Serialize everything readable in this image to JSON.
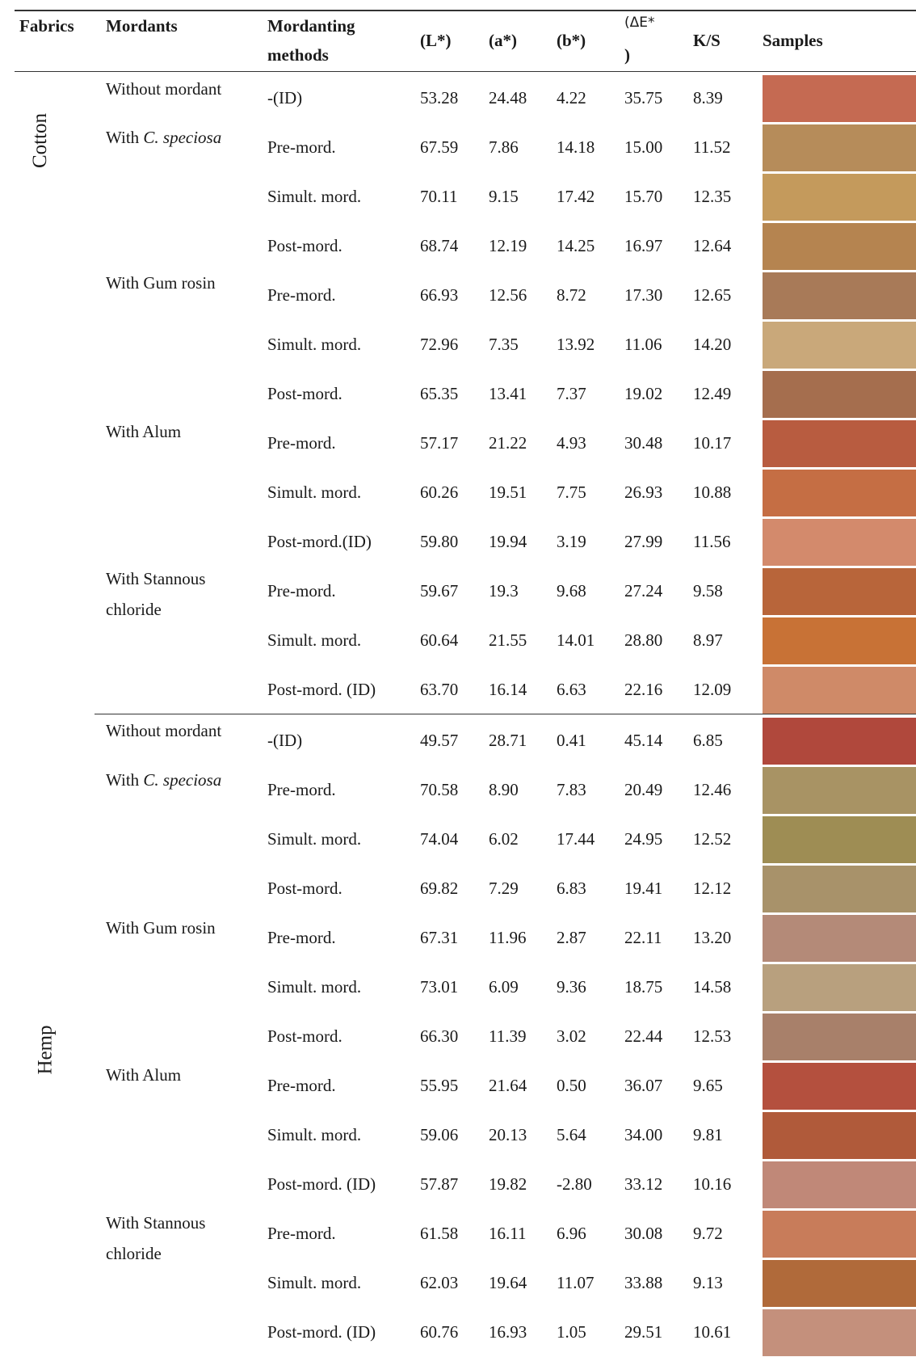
{
  "headers": {
    "fabrics": "Fabrics",
    "mordants": "Mordants",
    "methods_line1": "Mordanting",
    "methods_line2": "methods",
    "L": "(L*)",
    "a": "(a*)",
    "b": "(b*)",
    "dE_line1": "(ΔE*",
    "dE_line2": ")",
    "ks": "K/S",
    "samples": "Samples"
  },
  "fabrics": [
    {
      "name": "Cotton",
      "mordants": [
        {
          "prefix": "Without mordant",
          "italic": "",
          "rest": "",
          "line2": ""
        },
        {
          "prefix": "With ",
          "italic": "C. speciosa",
          "rest": "",
          "line2": ""
        },
        {
          "prefix": "With Gum rosin",
          "italic": "",
          "rest": "",
          "line2": ""
        },
        {
          "prefix": "With Alum",
          "italic": "",
          "rest": "",
          "line2": ""
        },
        {
          "prefix": "With Stannous",
          "italic": "",
          "rest": "",
          "line2": "chloride"
        }
      ],
      "rows": [
        {
          "method": "-(ID)",
          "L": "53.28",
          "a": "24.48",
          "b": "4.22",
          "dE": "35.75",
          "ks": "8.39",
          "color": "#c56a52"
        },
        {
          "method": "Pre-mord.",
          "L": "67.59",
          "a": "7.86",
          "b": "14.18",
          "dE": "15.00",
          "ks": "11.52",
          "color": "#b68c5a"
        },
        {
          "method": "Simult. mord.",
          "L": "70.11",
          "a": "9.15",
          "b": "17.42",
          "dE": "15.70",
          "ks": "12.35",
          "color": "#c49a5c"
        },
        {
          "method": "Post-mord.",
          "L": "68.74",
          "a": "12.19",
          "b": "14.25",
          "dE": "16.97",
          "ks": "12.64",
          "color": "#b58450"
        },
        {
          "method": "Pre-mord.",
          "L": "66.93",
          "a": "12.56",
          "b": "8.72",
          "dE": "17.30",
          "ks": "12.65",
          "color": "#a87a58"
        },
        {
          "method": "Simult. mord.",
          "L": "72.96",
          "a": "7.35",
          "b": "13.92",
          "dE": "11.06",
          "ks": "14.20",
          "color": "#c9a87a"
        },
        {
          "method": "Post-mord.",
          "L": "65.35",
          "a": "13.41",
          "b": "7.37",
          "dE": "19.02",
          "ks": "12.49",
          "color": "#a56e4e"
        },
        {
          "method": "Pre-mord.",
          "L": "57.17",
          "a": "21.22",
          "b": "4.93",
          "dE": "30.48",
          "ks": "10.17",
          "color": "#b85c40"
        },
        {
          "method": "Simult. mord.",
          "L": "60.26",
          "a": "19.51",
          "b": "7.75",
          "dE": "26.93",
          "ks": "10.88",
          "color": "#c56e44"
        },
        {
          "method": "Post-mord.(ID)",
          "L": "59.80",
          "a": "19.94",
          "b": "3.19",
          "dE": "27.99",
          "ks": "11.56",
          "color": "#d38a6c"
        },
        {
          "method": "Pre-mord.",
          "L": "59.67",
          "a": "19.3",
          "b": "9.68",
          "dE": "27.24",
          "ks": "9.58",
          "color": "#b8653a"
        },
        {
          "method": "Simult. mord.",
          "L": "60.64",
          "a": "21.55",
          "b": "14.01",
          "dE": "28.80",
          "ks": "8.97",
          "color": "#c87236"
        },
        {
          "method": "Post-mord. (ID)",
          "L": "63.70",
          "a": "16.14",
          "b": "6.63",
          "dE": "22.16",
          "ks": "12.09",
          "color": "#cf8a68"
        }
      ]
    },
    {
      "name": "Hemp",
      "mordants": [
        {
          "prefix": "Without mordant",
          "italic": "",
          "rest": "",
          "line2": ""
        },
        {
          "prefix": "With ",
          "italic": "C. speciosa",
          "rest": "",
          "line2": ""
        },
        {
          "prefix": "With Gum rosin",
          "italic": "",
          "rest": "",
          "line2": ""
        },
        {
          "prefix": "With Alum",
          "italic": "",
          "rest": "",
          "line2": ""
        },
        {
          "prefix": "With Stannous",
          "italic": "",
          "rest": "",
          "line2": "chloride"
        }
      ],
      "rows": [
        {
          "method": "-(ID)",
          "L": "49.57",
          "a": "28.71",
          "b": "0.41",
          "dE": "45.14",
          "ks": "6.85",
          "color": "#b0483c"
        },
        {
          "method": "Pre-mord.",
          "L": "70.58",
          "a": "8.90",
          "b": "7.83",
          "dE": "20.49",
          "ks": "12.46",
          "color": "#a89364"
        },
        {
          "method": "Simult. mord.",
          "L": "74.04",
          "a": "6.02",
          "b": "17.44",
          "dE": "24.95",
          "ks": "12.52",
          "color": "#9e8d54"
        },
        {
          "method": "Post-mord.",
          "L": "69.82",
          "a": "7.29",
          "b": "6.83",
          "dE": "19.41",
          "ks": "12.12",
          "color": "#a8926a"
        },
        {
          "method": "Pre-mord.",
          "L": "67.31",
          "a": "11.96",
          "b": "2.87",
          "dE": "22.11",
          "ks": "13.20",
          "color": "#b48a78"
        },
        {
          "method": "Simult. mord.",
          "L": "73.01",
          "a": "6.09",
          "b": "9.36",
          "dE": "18.75",
          "ks": "14.58",
          "color": "#b8a07e"
        },
        {
          "method": "Post-mord.",
          "L": "66.30",
          "a": "11.39",
          "b": "3.02",
          "dE": "22.44",
          "ks": "12.53",
          "color": "#a8806a"
        },
        {
          "method": "Pre-mord.",
          "L": "55.95",
          "a": "21.64",
          "b": "0.50",
          "dE": "36.07",
          "ks": "9.65",
          "color": "#b4503e"
        },
        {
          "method": "Simult. mord.",
          "L": "59.06",
          "a": "20.13",
          "b": "5.64",
          "dE": "34.00",
          "ks": "9.81",
          "color": "#b05a3a"
        },
        {
          "method": "Post-mord. (ID)",
          "L": "57.87",
          "a": "19.82",
          "b": "-2.80",
          "dE": "33.12",
          "ks": "10.16",
          "color": "#c08878"
        },
        {
          "method": "Pre-mord.",
          "L": "61.58",
          "a": "16.11",
          "b": "6.96",
          "dE": "30.08",
          "ks": "9.72",
          "color": "#c87c5a"
        },
        {
          "method": "Simult. mord.",
          "L": "62.03",
          "a": "19.64",
          "b": "11.07",
          "dE": "33.88",
          "ks": "9.13",
          "color": "#b06a3a"
        },
        {
          "method": "Post-mord. (ID)",
          "L": "60.76",
          "a": "16.93",
          "b": "1.05",
          "dE": "29.51",
          "ks": "10.61",
          "color": "#c4907c"
        }
      ]
    }
  ]
}
